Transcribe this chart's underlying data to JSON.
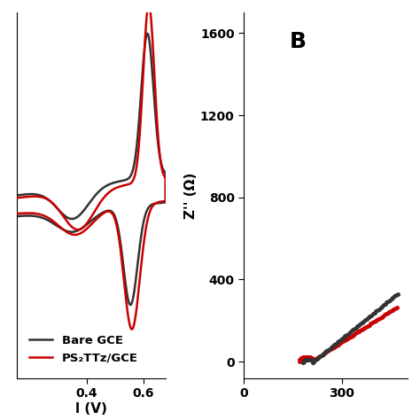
{
  "panel_A": {
    "xlabel": "l (V)",
    "xlim": [
      0.15,
      0.68
    ],
    "xticks": [
      0.4,
      0.6
    ],
    "legend": [
      "Bare GCE",
      "PS₂TTz/GCE"
    ],
    "legend_colors": [
      "#333333",
      "#cc0000"
    ],
    "line_width": 1.8,
    "ylim": [
      -0.65,
      0.75
    ]
  },
  "panel_B": {
    "label": "B",
    "ylabel": "Z'' (Ω)",
    "xlim": [
      0,
      500
    ],
    "xticks": [
      0,
      300
    ],
    "ylim": [
      -80,
      1700
    ],
    "yticks": [
      0,
      400,
      800,
      1200,
      1600
    ],
    "marker_size": 2.5,
    "bare_color": "#333333",
    "ps2_color": "#cc0000"
  },
  "background_color": "#ffffff",
  "tick_fontsize": 10,
  "label_fontsize": 11,
  "legend_fontsize": 9.5
}
